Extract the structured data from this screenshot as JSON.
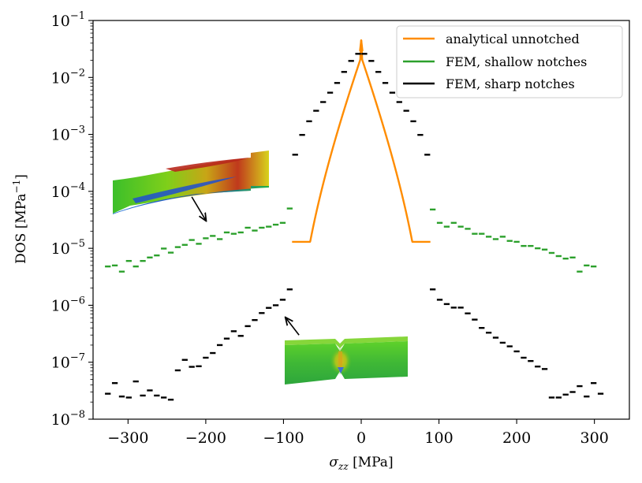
{
  "chart_data": {
    "type": "scatter",
    "title": "",
    "xlabel": "σzz [MPa]",
    "xlabel_parts": {
      "symbol": "σ",
      "subscript": "zz",
      "unit": " [MPa]"
    },
    "ylabel": "DOS [MPa−1]",
    "ylabel_parts": {
      "base": "DOS [MPa",
      "sup": "−1",
      "close": "]"
    },
    "xlim": [
      -345,
      345
    ],
    "ylim": [
      1e-08,
      0.1
    ],
    "yscale": "log",
    "xticks": [
      -300,
      -200,
      -100,
      0,
      100,
      200,
      300
    ],
    "xtick_labels": [
      "−300",
      "−200",
      "−100",
      "0",
      "100",
      "200",
      "300"
    ],
    "yticks": [
      {
        "value": 1e-08,
        "base": "10",
        "exp": "−8"
      },
      {
        "value": 1e-07,
        "base": "10",
        "exp": "−7"
      },
      {
        "value": 1e-06,
        "base": "10",
        "exp": "−6"
      },
      {
        "value": 1e-05,
        "base": "10",
        "exp": "−5"
      },
      {
        "value": 0.0001,
        "base": "10",
        "exp": "−4"
      },
      {
        "value": 0.001,
        "base": "10",
        "exp": "−3"
      },
      {
        "value": 0.01,
        "base": "10",
        "exp": "−2"
      },
      {
        "value": 0.1,
        "base": "10",
        "exp": "−1"
      }
    ],
    "grid": false,
    "legend_position": "top-right",
    "series": [
      {
        "name": "analytical unnotched",
        "color": "#ff8c00",
        "style": "line",
        "amplitude": 89,
        "peak": 0.045
      },
      {
        "name": "FEM, shallow notches",
        "color": "#2ca02c",
        "style": "bins",
        "bin_width": 9,
        "points": [
          [
            -326,
            4.8e-06
          ],
          [
            -317,
            5e-06
          ],
          [
            -308,
            3.9e-06
          ],
          [
            -299,
            6e-06
          ],
          [
            -290,
            4.8e-06
          ],
          [
            -281,
            6e-06
          ],
          [
            -272,
            6.9e-06
          ],
          [
            -263,
            7.5e-06
          ],
          [
            -254,
            9.9e-06
          ],
          [
            -245,
            8.4e-06
          ],
          [
            -236,
            1.05e-05
          ],
          [
            -227,
            1.15e-05
          ],
          [
            -218,
            1.4e-05
          ],
          [
            -209,
            1.2e-05
          ],
          [
            -200,
            1.5e-05
          ],
          [
            -191,
            1.65e-05
          ],
          [
            -182,
            1.45e-05
          ],
          [
            -173,
            1.9e-05
          ],
          [
            -164,
            1.8e-05
          ],
          [
            -155,
            1.9e-05
          ],
          [
            -146,
            2.3e-05
          ],
          [
            -137,
            2.05e-05
          ],
          [
            -128,
            2.3e-05
          ],
          [
            -119,
            2.4e-05
          ],
          [
            -110,
            2.6e-05
          ],
          [
            -101,
            2.8e-05
          ],
          [
            -92,
            5e-05
          ],
          [
            92,
            4.8e-05
          ],
          [
            101,
            2.8e-05
          ],
          [
            110,
            2.4e-05
          ],
          [
            119,
            2.8e-05
          ],
          [
            128,
            2.4e-05
          ],
          [
            137,
            2.2e-05
          ],
          [
            146,
            1.8e-05
          ],
          [
            155,
            1.8e-05
          ],
          [
            164,
            1.6e-05
          ],
          [
            173,
            1.45e-05
          ],
          [
            182,
            1.6e-05
          ],
          [
            191,
            1.35e-05
          ],
          [
            200,
            1.3e-05
          ],
          [
            209,
            1.1e-05
          ],
          [
            218,
            1.1e-05
          ],
          [
            227,
            1e-05
          ],
          [
            236,
            9.5e-06
          ],
          [
            245,
            8.3e-06
          ],
          [
            254,
            7.3e-06
          ],
          [
            263,
            6.6e-06
          ],
          [
            272,
            6.9e-06
          ],
          [
            281,
            3.9e-06
          ],
          [
            290,
            5e-06
          ],
          [
            299,
            4.8e-06
          ]
        ]
      },
      {
        "name": "FEM, sharp notches",
        "color": "#000000",
        "style": "bins",
        "bin_width": 9,
        "points": [
          [
            -326,
            2.8e-08
          ],
          [
            -317,
            4.3e-08
          ],
          [
            -308,
            2.5e-08
          ],
          [
            -299,
            2.4e-08
          ],
          [
            -290,
            4.6e-08
          ],
          [
            -281,
            2.6e-08
          ],
          [
            -272,
            3.2e-08
          ],
          [
            -263,
            2.6e-08
          ],
          [
            -254,
            2.4e-08
          ],
          [
            -245,
            2.2e-08
          ],
          [
            -236,
            7.2e-08
          ],
          [
            -227,
            1.1e-07
          ],
          [
            -218,
            8.3e-08
          ],
          [
            -209,
            8.5e-08
          ],
          [
            -200,
            1.2e-07
          ],
          [
            -191,
            1.45e-07
          ],
          [
            -182,
            2e-07
          ],
          [
            -173,
            2.6e-07
          ],
          [
            -164,
            3.5e-07
          ],
          [
            -155,
            2.9e-07
          ],
          [
            -146,
            4.3e-07
          ],
          [
            -137,
            5.5e-07
          ],
          [
            -128,
            7.3e-07
          ],
          [
            -119,
            9e-07
          ],
          [
            -110,
            1e-06
          ],
          [
            -101,
            1.25e-06
          ],
          [
            -92,
            1.9e-06
          ],
          [
            92,
            1.9e-06
          ],
          [
            101,
            1.25e-06
          ],
          [
            110,
            1.05e-06
          ],
          [
            119,
            9.1e-07
          ],
          [
            128,
            9.1e-07
          ],
          [
            137,
            7.2e-07
          ],
          [
            146,
            5.6e-07
          ],
          [
            155,
            4e-07
          ],
          [
            164,
            3.3e-07
          ],
          [
            173,
            2.7e-07
          ],
          [
            182,
            2.2e-07
          ],
          [
            191,
            1.9e-07
          ],
          [
            200,
            1.55e-07
          ],
          [
            209,
            1.2e-07
          ],
          [
            218,
            1.05e-07
          ],
          [
            227,
            8.4e-08
          ],
          [
            236,
            7.6e-08
          ],
          [
            245,
            2.4e-08
          ],
          [
            254,
            2.4e-08
          ],
          [
            263,
            2.7e-08
          ],
          [
            272,
            3e-08
          ],
          [
            281,
            3.8e-08
          ],
          [
            290,
            2.5e-08
          ],
          [
            299,
            4.3e-08
          ],
          [
            308,
            2.8e-08
          ]
        ]
      },
      {
        "name": "",
        "color": "#000000",
        "style": "bins",
        "bin_width": 9,
        "points": [
          [
            -85,
            0.00044
          ],
          [
            -76,
            0.00098
          ],
          [
            -67,
            0.0017
          ],
          [
            -58,
            0.0026
          ],
          [
            -49,
            0.0037
          ],
          [
            -40,
            0.0054
          ],
          [
            -31,
            0.008
          ],
          [
            -22,
            0.0125
          ],
          [
            -13,
            0.0195
          ],
          [
            -4,
            0.026
          ],
          [
            4,
            0.026
          ],
          [
            13,
            0.0195
          ],
          [
            22,
            0.0125
          ],
          [
            31,
            0.008
          ],
          [
            40,
            0.0054
          ],
          [
            49,
            0.0037
          ],
          [
            58,
            0.0026
          ],
          [
            67,
            0.0017
          ],
          [
            76,
            0.00098
          ],
          [
            85,
            0.00044
          ]
        ]
      }
    ],
    "annotations": [
      {
        "name": "shallow-notch-inset",
        "kind": "inset-image",
        "description_icon": "shallow-notch-specimen",
        "arrow_from": [
          -218,
          8e-05
        ],
        "arrow_to": [
          -200,
          3.1e-05
        ]
      },
      {
        "name": "sharp-notch-inset",
        "kind": "inset-image",
        "description_icon": "sharp-notch-specimen",
        "arrow_from": [
          -80,
          3e-07
        ],
        "arrow_to": [
          -97,
          6e-07
        ]
      }
    ]
  }
}
